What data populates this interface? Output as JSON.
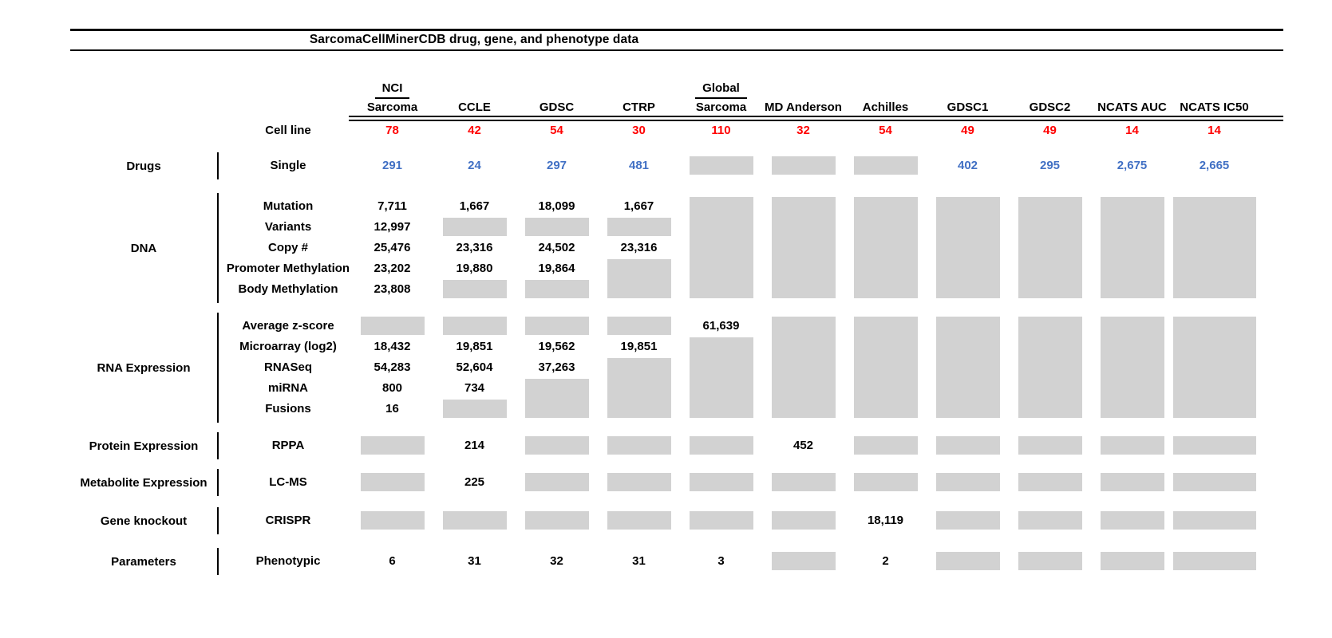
{
  "chart_data": {
    "type": "table",
    "title": "SarcomaCellMinerCDB drug, gene, and phenotype data",
    "missing_data_marker": "gray box",
    "columns": [
      {
        "top": "NCI",
        "label": "Sarcoma"
      },
      {
        "label": "CCLE"
      },
      {
        "label": "GDSC"
      },
      {
        "label": "CTRP"
      },
      {
        "top": "Global",
        "label": "Sarcoma"
      },
      {
        "label": "MD Anderson"
      },
      {
        "label": "Achilles"
      },
      {
        "label": "GDSC1"
      },
      {
        "label": "GDSC2"
      },
      {
        "label": "NCATS AUC"
      },
      {
        "label": "NCATS IC50"
      }
    ],
    "cell_line_row": {
      "label": "Cell line",
      "values": [
        "78",
        "42",
        "54",
        "30",
        "110",
        "32",
        "54",
        "49",
        "49",
        "14",
        "14"
      ]
    },
    "sections": [
      {
        "group": "Drugs",
        "value_color": "blue",
        "rows": [
          {
            "label": "Single",
            "cells": [
              "291",
              "24",
              "297",
              "481",
              "#1",
              "#1",
              "#1",
              "402",
              "295",
              "2,675",
              "2,665"
            ]
          }
        ]
      },
      {
        "group": "DNA",
        "rows": [
          {
            "label": "Mutation",
            "cells": [
              "7,711",
              "1,667",
              "18,099",
              "1,667",
              "#5",
              "#5",
              "#5",
              "#5",
              "#5",
              "#5",
              "#5"
            ]
          },
          {
            "label": "Variants",
            "cells": [
              "12,997",
              "#1",
              "#1",
              "#1",
              "",
              "",
              "",
              "",
              "",
              "",
              ""
            ]
          },
          {
            "label": "Copy #",
            "cells": [
              "25,476",
              "23,316",
              "24,502",
              "23,316",
              "",
              "",
              "",
              "",
              "",
              "",
              ""
            ]
          },
          {
            "label": "Promoter Methylation",
            "cells": [
              "23,202",
              "19,880",
              "19,864",
              "#2",
              "",
              "",
              "",
              "",
              "",
              "",
              ""
            ]
          },
          {
            "label": "Body Methylation",
            "cells": [
              "23,808",
              "#1",
              "#1",
              "",
              "",
              "",
              "",
              "",
              "",
              "",
              ""
            ]
          }
        ]
      },
      {
        "group": "RNA Expression",
        "rows": [
          {
            "label": "Average z-score",
            "cells": [
              "#1",
              "#1",
              "#1",
              "#1",
              "61,639",
              "#5",
              "#5",
              "#5",
              "#5",
              "#5",
              "#5"
            ]
          },
          {
            "label": "Microarray (log2)",
            "cells": [
              "18,432",
              "19,851",
              "19,562",
              "19,851",
              "#4",
              "",
              "",
              "",
              "",
              "",
              ""
            ]
          },
          {
            "label": "RNASeq",
            "cells": [
              "54,283",
              "52,604",
              "37,263",
              "#3",
              "",
              "",
              "",
              "",
              "",
              "",
              ""
            ]
          },
          {
            "label": "miRNA",
            "cells": [
              "800",
              "734",
              "#2",
              "",
              "",
              "",
              "",
              "",
              "",
              "",
              ""
            ]
          },
          {
            "label": "Fusions",
            "cells": [
              "16",
              "#1",
              "",
              "",
              "",
              "",
              "",
              "",
              "",
              "",
              ""
            ]
          }
        ]
      },
      {
        "group": "Protein Expression",
        "rows": [
          {
            "label": "RPPA",
            "cells": [
              "#1",
              "214",
              "#1",
              "#1",
              "#1",
              "452",
              "#1",
              "#1",
              "#1",
              "#1",
              "#1"
            ]
          }
        ]
      },
      {
        "group": "Metabolite Expression",
        "rows": [
          {
            "label": "LC-MS",
            "cells": [
              "#1",
              "225",
              "#1",
              "#1",
              "#1",
              "#1",
              "#1",
              "#1",
              "#1",
              "#1",
              "#1"
            ]
          }
        ]
      },
      {
        "group": "Gene knockout",
        "rows": [
          {
            "label": "CRISPR",
            "cells": [
              "#1",
              "#1",
              "#1",
              "#1",
              "#1",
              "#1",
              "18,119",
              "#1",
              "#1",
              "#1",
              "#1"
            ]
          }
        ]
      },
      {
        "group": "Parameters",
        "rows": [
          {
            "label": "Phenotypic",
            "cells": [
              "6",
              "31",
              "32",
              "31",
              "3",
              "#1",
              "2",
              "#1",
              "#1",
              "#1",
              "#1"
            ]
          }
        ]
      }
    ]
  },
  "colors": {
    "cell_line_red": "#ff0000",
    "drug_count_blue": "#4170c4",
    "missing_gray": "#d2d2d2",
    "text_black": "#000000",
    "rule_black": "#000000"
  }
}
